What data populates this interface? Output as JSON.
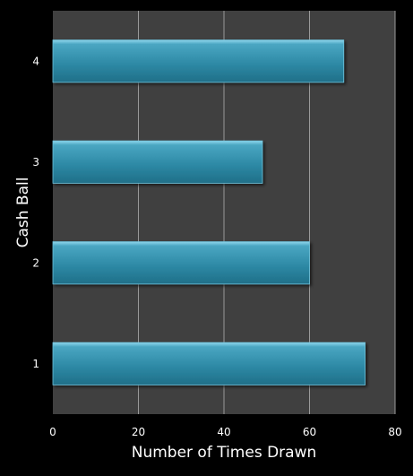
{
  "chart_data": {
    "type": "bar",
    "orientation": "horizontal",
    "categories": [
      "1",
      "2",
      "3",
      "4"
    ],
    "values": [
      73,
      60,
      49,
      68
    ],
    "xlabel": "Number of Times Drawn",
    "ylabel": "Cash Ball",
    "xlim": [
      0,
      80
    ],
    "xticks": [
      "0",
      "20",
      "40",
      "60",
      "80"
    ],
    "grid": "vertical",
    "legend": "none"
  },
  "colors": {
    "background": "#000000",
    "plot_area": "#404040",
    "bar": "#2E8AA6",
    "bar_highlight": "#7CCBE3",
    "gridline": "#9A9A9A",
    "text": "#FFFFFF"
  }
}
